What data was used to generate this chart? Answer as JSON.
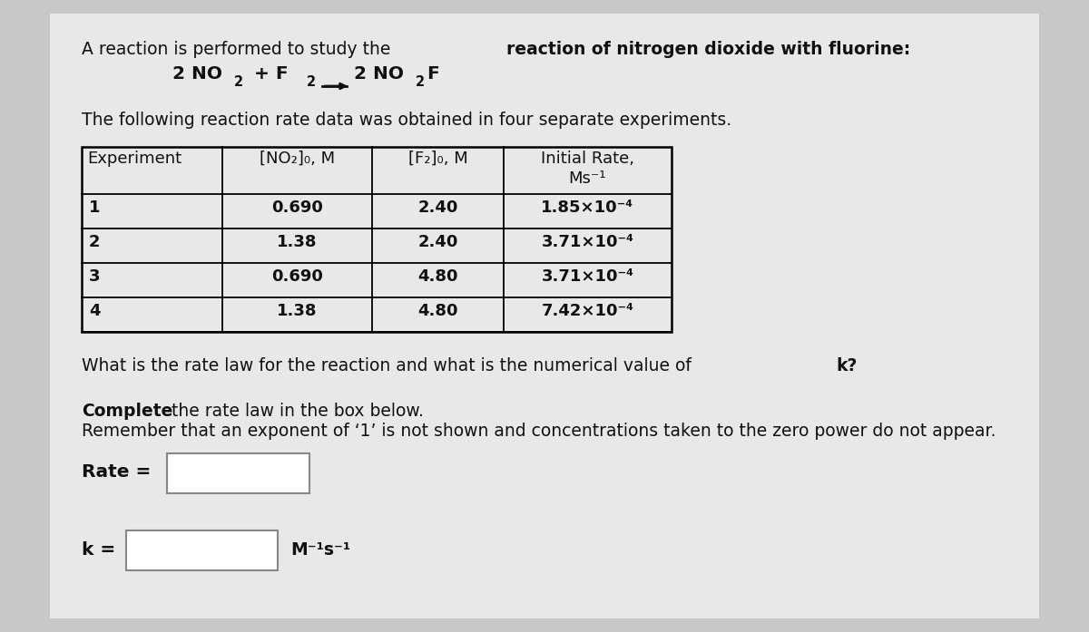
{
  "background_color": "#c8c8c8",
  "content_bg": "#e8e8e8",
  "text_color": "#111111",
  "title_normal": "A reaction is performed to study the ",
  "title_bold": "reaction of nitrogen dioxide with fluorine:",
  "subtitle": "The following reaction rate data was obtained in four separate experiments.",
  "question": "What is the rate law for the reaction and what is the numerical value of ",
  "question_bold_end": "k?",
  "instruction_bold": "Complete",
  "instruction_rest": " the rate law in the box below.",
  "instruction2": "Remember that an exponent of ‘‘1’ is not shown and concentrations taken to the zero power do not appear.",
  "table_headers": [
    "Experiment",
    "[NO₂]₀, M",
    "[F₂]₀, M",
    "Initial Rate,\nMs⁻¹"
  ],
  "table_data": [
    [
      "1",
      "0.690",
      "2.40",
      "1.85×10⁻⁴"
    ],
    [
      "2",
      "1.38",
      "2.40",
      "3.71×10⁻⁴"
    ],
    [
      "3",
      "0.690",
      "4.80",
      "3.71×10⁻⁴"
    ],
    [
      "4",
      "1.38",
      "4.80",
      "7.42×10⁻⁴"
    ]
  ],
  "font_size": 13.5,
  "font_size_eq": 14.5,
  "font_size_table": 13
}
